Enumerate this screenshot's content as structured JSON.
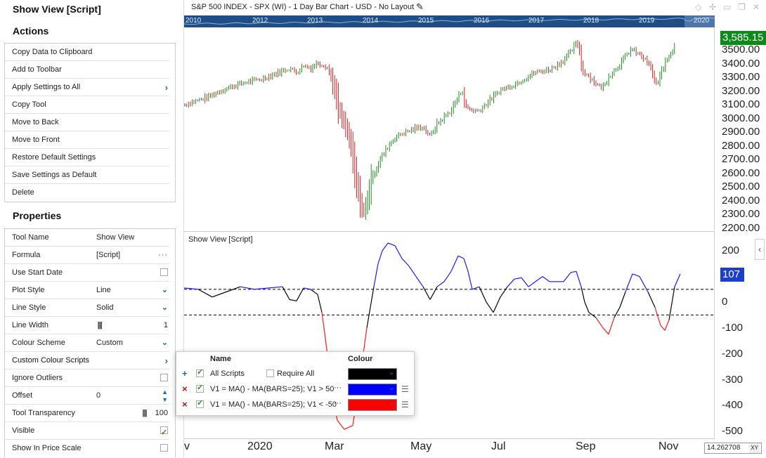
{
  "panel": {
    "title": "Show View [Script]",
    "actions_title": "Actions",
    "actions": [
      {
        "label": "Copy Data to Clipboard",
        "submenu": false
      },
      {
        "label": "Add to Toolbar",
        "submenu": false
      },
      {
        "label": "Apply Settings to All",
        "submenu": true
      },
      {
        "label": "Copy Tool",
        "submenu": false
      },
      {
        "label": "Move to Back",
        "submenu": false
      },
      {
        "label": "Move to Front",
        "submenu": false
      },
      {
        "label": "Restore Default Settings",
        "submenu": false
      },
      {
        "label": "Save Settings as Default",
        "submenu": false
      },
      {
        "label": "Delete",
        "submenu": false
      }
    ],
    "properties_title": "Properties",
    "properties": [
      {
        "label": "Tool Name",
        "value": "Show View",
        "control": "none"
      },
      {
        "label": "Formula",
        "value": "[Script]",
        "control": "dots"
      },
      {
        "label": "Use Start Date",
        "value": "",
        "control": "checkbox",
        "checked": false
      },
      {
        "label": "Plot Style",
        "value": "Line",
        "control": "dropdown"
      },
      {
        "label": "Line Style",
        "value": "Solid",
        "control": "dropdown"
      },
      {
        "label": "Line Width",
        "value": "1",
        "control": "width"
      },
      {
        "label": "Colour Scheme",
        "value": "Custom",
        "control": "dropdown"
      },
      {
        "label": "Custom Colour Scripts",
        "value": "",
        "control": "submenu"
      },
      {
        "label": "Ignore Outliers",
        "value": "",
        "control": "checkbox",
        "checked": false
      },
      {
        "label": "Offset",
        "value": "0",
        "control": "spinner"
      },
      {
        "label": "Tool Transparency",
        "value": "100",
        "control": "width"
      },
      {
        "label": "Visible",
        "value": "",
        "control": "checkbox",
        "checked": true
      },
      {
        "label": "Show In Price Scale",
        "value": "",
        "control": "checkbox",
        "checked": false
      }
    ]
  },
  "chart": {
    "title": "S&P 500 INDEX - SPX (WI) - 1 Day Bar Chart - USD - No Layout",
    "navigator_years": [
      "2010",
      "2012",
      "2013",
      "2014",
      "2015",
      "2016",
      "2017",
      "2018",
      "2019",
      "2020"
    ],
    "price_badge": "3,585.15",
    "indicator_title": "Show View [Script]",
    "indicator_badge": "107",
    "scale_readout": "14.262708",
    "scale_mode": "XY",
    "date_labels": [
      "v",
      "2020",
      "Mar",
      "May",
      "Jul",
      "Sep",
      "Nov"
    ]
  },
  "chart_data": {
    "type": "bar",
    "price_axis_ticks": [
      "3500.00",
      "3400.00",
      "3300.00",
      "3200.00",
      "3100.00",
      "3000.00",
      "2900.00",
      "2800.00",
      "2700.00",
      "2600.00",
      "2500.00",
      "2400.00",
      "2300.00",
      "2200.00"
    ],
    "indicator_axis_ticks": [
      "200",
      "100",
      "0",
      "-100",
      "-200",
      "-300",
      "-400",
      "-500"
    ],
    "indicator_thresholds": [
      50,
      -50
    ],
    "colors": {
      "up": "#1f8a1f",
      "down": "#d42020",
      "flat": "#1a3fcf",
      "indicator_high": "#1a1aff",
      "indicator_low": "#ff1a1a",
      "indicator_mid": "#000000"
    }
  },
  "popup": {
    "header_name": "Name",
    "header_colour": "Colour",
    "rows": [
      {
        "icon": "+",
        "checked": true,
        "name": "All Scripts",
        "require_label": "Require All",
        "colour": "#000000"
      },
      {
        "icon": "×",
        "checked": true,
        "name": "V1 = MA() - MA(BARS=25); V1 > 50",
        "colour": "#0000ff"
      },
      {
        "icon": "×",
        "checked": true,
        "name": "V1 = MA() - MA(BARS=25); V1 < -50",
        "colour": "#ff0000"
      }
    ]
  }
}
